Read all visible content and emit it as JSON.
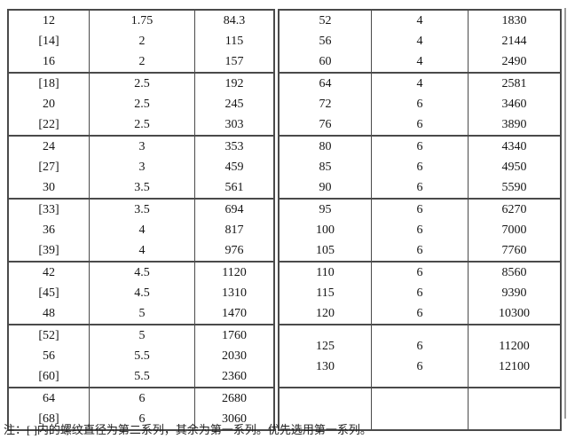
{
  "colors": {
    "table_line": "#4a4a4a",
    "text": "#151515",
    "page_bg": "#ffffff",
    "edge_strip": "#9a9a9a"
  },
  "table": {
    "left_groups": [
      {
        "d": [
          "12",
          "[14]",
          "16"
        ],
        "p": [
          "1.75",
          "2",
          "2"
        ],
        "a": [
          "84.3",
          "115",
          "157"
        ]
      },
      {
        "d": [
          "[18]",
          "20",
          "[22]"
        ],
        "p": [
          "2.5",
          "2.5",
          "2.5"
        ],
        "a": [
          "192",
          "245",
          "303"
        ]
      },
      {
        "d": [
          "24",
          "[27]",
          "30"
        ],
        "p": [
          "3",
          "3",
          "3.5"
        ],
        "a": [
          "353",
          "459",
          "561"
        ]
      },
      {
        "d": [
          "[33]",
          "36",
          "[39]"
        ],
        "p": [
          "3.5",
          "4",
          "4"
        ],
        "a": [
          "694",
          "817",
          "976"
        ]
      },
      {
        "d": [
          "42",
          "[45]",
          "48"
        ],
        "p": [
          "4.5",
          "4.5",
          "5"
        ],
        "a": [
          "1120",
          "1310",
          "1470"
        ]
      },
      {
        "d": [
          "[52]",
          "56",
          "[60]"
        ],
        "p": [
          "5",
          "5.5",
          "5.5"
        ],
        "a": [
          "1760",
          "2030",
          "2360"
        ]
      },
      {
        "d": [
          "64",
          "[68]"
        ],
        "p": [
          "6",
          "6"
        ],
        "a": [
          "2680",
          "3060"
        ]
      }
    ],
    "right_groups": [
      {
        "d": [
          "52",
          "56",
          "60"
        ],
        "p": [
          "4",
          "4",
          "4"
        ],
        "a": [
          "1830",
          "2144",
          "2490"
        ]
      },
      {
        "d": [
          "64",
          "72",
          "76"
        ],
        "p": [
          "4",
          "6",
          "6"
        ],
        "a": [
          "2581",
          "3460",
          "3890"
        ]
      },
      {
        "d": [
          "80",
          "85",
          "90"
        ],
        "p": [
          "6",
          "6",
          "6"
        ],
        "a": [
          "4340",
          "4950",
          "5590"
        ]
      },
      {
        "d": [
          "95",
          "100",
          "105"
        ],
        "p": [
          "6",
          "6",
          "6"
        ],
        "a": [
          "6270",
          "7000",
          "7760"
        ]
      },
      {
        "d": [
          "110",
          "115",
          "120"
        ],
        "p": [
          "6",
          "6",
          "6"
        ],
        "a": [
          "8560",
          "9390",
          "10300"
        ]
      },
      {
        "d": [
          "125",
          "130"
        ],
        "p": [
          "6",
          "6"
        ],
        "a": [
          "11200",
          "12100"
        ]
      },
      {
        "d": [],
        "p": [],
        "a": []
      }
    ]
  },
  "note": "注：[ ]内的螺纹直径为第二系列，其余为第一系列。优先选用第一系列。"
}
